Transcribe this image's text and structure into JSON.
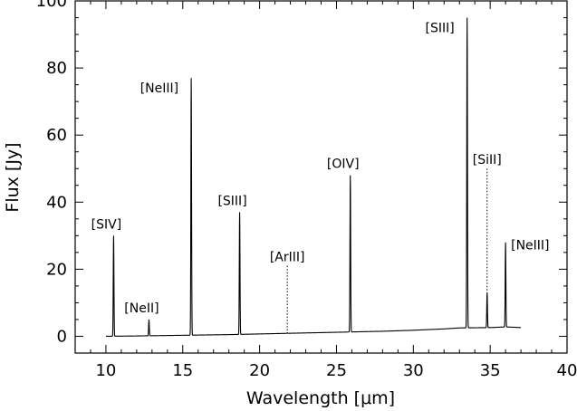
{
  "chart_data": {
    "type": "line",
    "xlabel": "Wavelength [μm]",
    "ylabel": "Flux [Jy]",
    "xlim": [
      8,
      40
    ],
    "ylim": [
      -5,
      100
    ],
    "xticks": [
      10,
      15,
      20,
      25,
      30,
      35,
      40
    ],
    "yticks": [
      0,
      20,
      40,
      60,
      80,
      100
    ],
    "grid": false,
    "continuum": {
      "x": [
        10.0,
        12.0,
        15.0,
        18.0,
        20.0,
        22.0,
        25.0,
        28.0,
        30.0,
        32.0,
        33.0,
        35.0,
        36.0,
        37.0
      ],
      "y": [
        0.0,
        0.1,
        0.3,
        0.5,
        0.7,
        0.9,
        1.2,
        1.5,
        1.8,
        2.2,
        2.5,
        2.6,
        2.8,
        2.6
      ]
    },
    "lines": [
      {
        "label": "[SIV]",
        "x": 10.5,
        "peak": 30,
        "style": "solid"
      },
      {
        "label": "[NeII]",
        "x": 12.8,
        "peak": 5,
        "style": "solid"
      },
      {
        "label": "[NeIII]",
        "x": 15.55,
        "peak": 77,
        "style": "solid"
      },
      {
        "label": "[SIII]",
        "x": 18.7,
        "peak": 37,
        "style": "solid"
      },
      {
        "label": "[ArIII]",
        "x": 21.8,
        "peak": 1,
        "style": "dotted"
      },
      {
        "label": "[OIV]",
        "x": 25.9,
        "peak": 48,
        "style": "solid"
      },
      {
        "label": "[SIII]",
        "x": 33.5,
        "peak": 95,
        "style": "solid"
      },
      {
        "label": "[SiII]",
        "x": 34.8,
        "peak": 13,
        "style": "dotted"
      },
      {
        "label": "[NeIII]",
        "x": 36.0,
        "peak": 28,
        "style": "solid"
      }
    ]
  }
}
